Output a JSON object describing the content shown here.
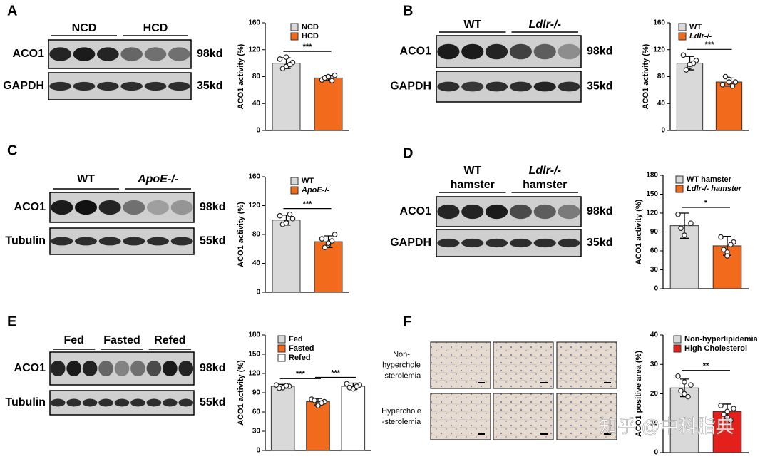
{
  "panels": [
    "A",
    "B",
    "C",
    "D",
    "E",
    "F"
  ],
  "blots": [
    {
      "groups": [
        [
          "NCD"
        ],
        [
          "HCD"
        ]
      ],
      "rows": [
        {
          "name": "ACO1",
          "size": "98kd"
        },
        {
          "name": "GAPDH",
          "size": "35kd"
        }
      ]
    },
    {
      "groups": [
        [
          "WT"
        ],
        [
          "Ldlr-/-"
        ]
      ],
      "rows": [
        {
          "name": "ACO1",
          "size": "98kd"
        },
        {
          "name": "GAPDH",
          "size": "35kd"
        }
      ]
    },
    {
      "groups": [
        [
          "WT"
        ],
        [
          "ApoE-/-"
        ]
      ],
      "rows": [
        {
          "name": "ACO1",
          "size": "98kd"
        },
        {
          "name": "Tubulin",
          "size": "55kd"
        }
      ]
    },
    {
      "groups": [
        [
          "WT",
          "hamster"
        ],
        [
          "Ldlr-/-",
          "hamster"
        ]
      ],
      "rows": [
        {
          "name": "ACO1",
          "size": "98kd"
        },
        {
          "name": "GAPDH",
          "size": "35kd"
        }
      ]
    },
    {
      "groups": [
        [
          "Fed"
        ],
        [
          "Fasted"
        ],
        [
          "Refed"
        ]
      ],
      "rows": [
        {
          "name": "ACO1",
          "size": "98kd"
        },
        {
          "name": "Tubulin",
          "size": "55kd"
        }
      ]
    }
  ],
  "images": {
    "rows": [
      "Non-\nhyperchole\n-sterolemia",
      "Hyperchole\n-sterolemia"
    ]
  },
  "watermark": "知乎 @中科脂典",
  "chart_data": [
    {
      "type": "bar",
      "y_label": "ACO1 activity (%)",
      "ylim": [
        0,
        160
      ],
      "yticks": [
        0,
        40,
        80,
        120,
        160
      ],
      "series": [
        {
          "name": "NCD",
          "color": "#d9d9d9",
          "value": 100,
          "error": 8,
          "points": [
            106,
            95,
            101,
            92,
            98,
            109
          ]
        },
        {
          "name": "HCD",
          "color": "#f26a1b",
          "value": 78,
          "error": 4,
          "points": [
            75,
            80,
            82,
            78,
            74,
            80
          ]
        }
      ],
      "significance": [
        "***"
      ]
    },
    {
      "type": "bar",
      "y_label": "ACO1 activity (%)",
      "ylim": [
        0,
        160
      ],
      "yticks": [
        0,
        40,
        80,
        120,
        160
      ],
      "series": [
        {
          "name": "WT",
          "color": "#d9d9d9",
          "value": 100,
          "error": 10,
          "points": [
            112,
            95,
            104,
            90,
            100,
            98
          ]
        },
        {
          "name": "Ldlr-/-",
          "color": "#f26a1b",
          "value": 72,
          "error": 6,
          "points": [
            68,
            76,
            72,
            80,
            66,
            72
          ]
        }
      ],
      "significance": [
        "***"
      ]
    },
    {
      "type": "bar",
      "y_label": "ACO1 activity (%)",
      "ylim": [
        0,
        160
      ],
      "yticks": [
        0,
        40,
        80,
        120,
        160
      ],
      "series": [
        {
          "name": "WT",
          "color": "#d9d9d9",
          "value": 100,
          "error": 7,
          "points": [
            106,
            97,
            102,
            94,
            108,
            96
          ]
        },
        {
          "name": "ApoE-/-",
          "color": "#f26a1b",
          "value": 70,
          "error": 8,
          "points": [
            74,
            66,
            80,
            62,
            71,
            68
          ]
        }
      ],
      "significance": [
        "***"
      ]
    },
    {
      "type": "bar",
      "y_label": "ACO1 activity (%)",
      "ylim": [
        0,
        180
      ],
      "yticks": [
        0,
        30,
        60,
        90,
        120,
        150,
        180
      ],
      "series": [
        {
          "name": "WT hamster",
          "color": "#d9d9d9",
          "value": 100,
          "error": 20,
          "points": [
            118,
            85,
            104,
            96
          ]
        },
        {
          "name": "Ldlr-/- hamster",
          "color": "#f26a1b",
          "value": 68,
          "error": 15,
          "points": [
            82,
            58,
            74,
            62,
            70,
            52
          ]
        }
      ],
      "significance": [
        "*"
      ]
    },
    {
      "type": "bar",
      "y_label": "ACO1 activity (%)",
      "ylim": [
        0,
        180
      ],
      "yticks": [
        0,
        30,
        60,
        90,
        120,
        150,
        180
      ],
      "series": [
        {
          "name": "Fed",
          "color": "#d9d9d9",
          "value": 100,
          "error": 3,
          "points": [
            102,
            98,
            100,
            97,
            101
          ]
        },
        {
          "name": "Fasted",
          "color": "#f26a1b",
          "value": 76,
          "error": 5,
          "points": [
            80,
            72,
            76,
            78,
            74,
            70
          ]
        },
        {
          "name": "Refed",
          "color": "#ffffff",
          "value": 100,
          "error": 5,
          "points": [
            104,
            96,
            102,
            98,
            100
          ]
        }
      ],
      "significance": [
        "***",
        "***"
      ]
    },
    {
      "type": "bar",
      "y_label": "ACO1 positive area (%)",
      "ylim": [
        0,
        40
      ],
      "yticks": [
        0,
        10,
        20,
        30,
        40
      ],
      "series": [
        {
          "name": "Non-hyperlipidemia",
          "color": "#d9d9d9",
          "value": 22,
          "error": 3,
          "points": [
            26,
            20,
            23,
            21,
            19,
            24
          ]
        },
        {
          "name": "High Cholesterol",
          "color": "#e3201c",
          "value": 14,
          "error": 2.5,
          "points": [
            16,
            12,
            15,
            13,
            11,
            14
          ]
        }
      ],
      "significance": [
        "**"
      ]
    }
  ]
}
